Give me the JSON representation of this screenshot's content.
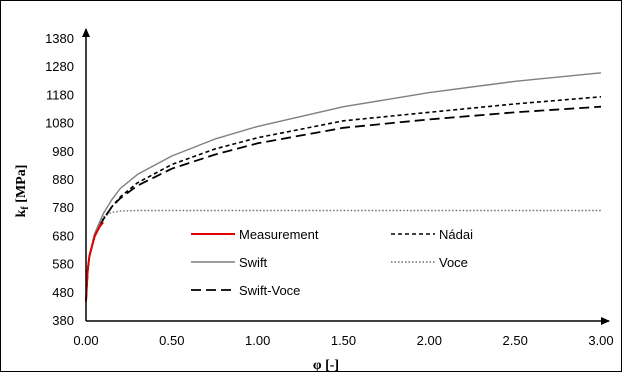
{
  "chart_data": {
    "type": "line",
    "title": "",
    "xlabel": "φ [-]",
    "ylabel": {
      "main": "k",
      "sub": "f",
      "unit": " [MPa]"
    },
    "xlim": [
      0,
      3
    ],
    "ylim": [
      380,
      1380
    ],
    "xticks": [
      0,
      0.5,
      1,
      1.5,
      2,
      2.5,
      3
    ],
    "xtick_labels": [
      "0.00",
      "0.50",
      "1.00",
      "1.50",
      "2.00",
      "2.50",
      "3.00"
    ],
    "yticks": [
      380,
      480,
      580,
      680,
      780,
      880,
      980,
      1080,
      1180,
      1280,
      1380
    ],
    "ytick_labels": [
      "380",
      "480",
      "580",
      "680",
      "780",
      "880",
      "980",
      "1080",
      "1180",
      "1280",
      "1380"
    ],
    "grid": false,
    "legend_position": "inside-lower-center",
    "x": [
      0,
      0.01,
      0.02,
      0.05,
      0.1,
      0.15,
      0.2,
      0.3,
      0.5,
      0.75,
      1.0,
      1.5,
      2.0,
      2.5,
      3.0
    ],
    "series": [
      {
        "name": "Measurement",
        "color": "#e00000",
        "dash": "solid",
        "width": 2,
        "x": [
          0,
          0.01,
          0.02,
          0.05,
          0.08,
          0.1
        ],
        "values": [
          450,
          560,
          610,
          680,
          715,
          730
        ]
      },
      {
        "name": "Nádai",
        "color": "#000000",
        "dash": "short-dash",
        "width": 1.6,
        "values": [
          450,
          560,
          610,
          680,
          740,
          785,
          820,
          870,
          935,
          990,
          1030,
          1090,
          1120,
          1150,
          1175
        ]
      },
      {
        "name": "Swift",
        "color": "#7f7f7f",
        "dash": "solid",
        "width": 1.4,
        "values": [
          450,
          560,
          610,
          690,
          760,
          810,
          850,
          900,
          965,
          1025,
          1070,
          1140,
          1190,
          1230,
          1260
        ]
      },
      {
        "name": "Voce",
        "color": "#6f6f6f",
        "dash": "dotted",
        "width": 1.4,
        "values": [
          450,
          560,
          610,
          690,
          750,
          765,
          770,
          772,
          772,
          772,
          772,
          772,
          772,
          772,
          772
        ]
      },
      {
        "name": "Swift-Voce",
        "color": "#000000",
        "dash": "long-dash",
        "width": 1.8,
        "values": [
          450,
          560,
          610,
          680,
          740,
          785,
          815,
          860,
          920,
          970,
          1010,
          1065,
          1095,
          1120,
          1140
        ]
      }
    ]
  }
}
